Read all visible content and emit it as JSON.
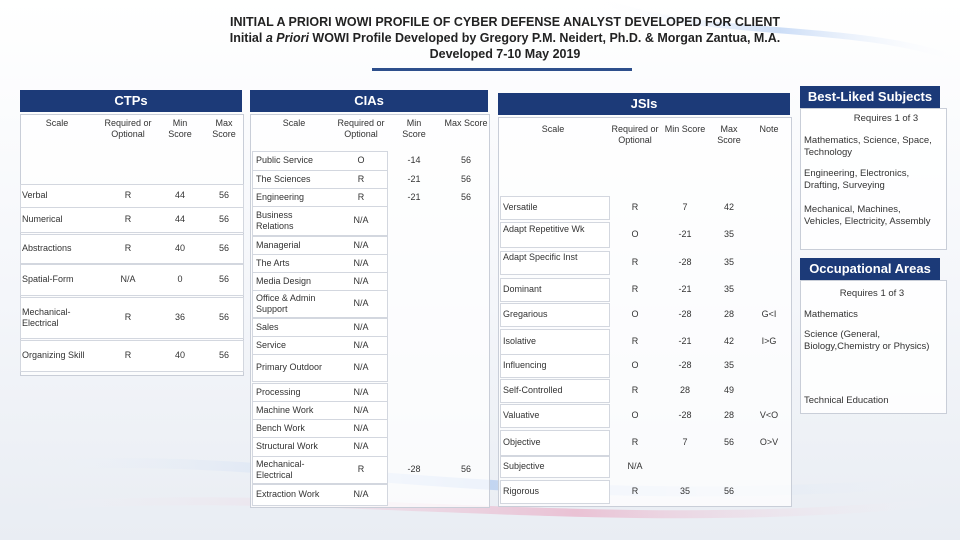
{
  "title": {
    "line1": "INITIAL A PRIORI WOWI PROFILE OF CYBER DEFENSE ANALYST DEVELOPED FOR CLIENT",
    "line2_pre": "Initial ",
    "line2_italic": "a Priori",
    "line2_post": " WOWI Profile Developed by Gregory P.M. Neidert, Ph.D. & Morgan Zantua, M.A.",
    "line3": "Developed 7-10 May 2019"
  },
  "ctps": {
    "header": "CTPs",
    "columns": [
      "Scale",
      "Required or Optional",
      "Min Score",
      "Max Score"
    ],
    "rows": [
      [
        "Verbal",
        "R",
        "44",
        "56"
      ],
      [
        "Numerical",
        "R",
        "44",
        "56"
      ],
      [
        "Abstractions",
        "R",
        "40",
        "56"
      ],
      [
        "Spatial-Form",
        "N/A",
        "0",
        "56"
      ],
      [
        "Mechanical-Electrical",
        "R",
        "36",
        "56"
      ],
      [
        "Organizing Skill",
        "R",
        "40",
        "56"
      ]
    ]
  },
  "cias": {
    "header": "CIAs",
    "columns": [
      "Scale",
      "Required or Optional",
      "Min Score",
      "Max Score"
    ],
    "rows": [
      [
        "Public Service",
        "O",
        "-14",
        "56"
      ],
      [
        "The Sciences",
        "R",
        "-21",
        "56"
      ],
      [
        "Engineering",
        "R",
        "-21",
        "56"
      ],
      [
        "Business Relations",
        "N/A",
        "",
        ""
      ],
      [
        "Managerial",
        "N/A",
        "",
        ""
      ],
      [
        "The Arts",
        "N/A",
        "",
        ""
      ],
      [
        "Media Design",
        "N/A",
        "",
        ""
      ],
      [
        "Office & Admin Support",
        "N/A",
        "",
        ""
      ],
      [
        "Sales",
        "N/A",
        "",
        ""
      ],
      [
        "Service",
        "N/A",
        "",
        ""
      ],
      [
        "Primary Outdoor",
        "N/A",
        "",
        ""
      ],
      [
        "Processing",
        "N/A",
        "",
        ""
      ],
      [
        "Machine Work",
        "N/A",
        "",
        ""
      ],
      [
        "Bench Work",
        "N/A",
        "",
        ""
      ],
      [
        "Structural Work",
        "N/A",
        "",
        ""
      ],
      [
        "Mechanical-Electrical",
        "R",
        "-28",
        "56"
      ],
      [
        "Extraction Work",
        "N/A",
        "",
        ""
      ]
    ]
  },
  "jsis": {
    "header": "JSIs",
    "columns": [
      "Scale",
      "Required or Optional",
      "Min Score",
      "Max Score",
      "Note"
    ],
    "rows": [
      [
        "Versatile",
        "R",
        "7",
        "42",
        ""
      ],
      [
        "Adapt Repetitive Wk",
        "O",
        "-21",
        "35",
        ""
      ],
      [
        "Adapt Specific Inst",
        "R",
        "-28",
        "35",
        ""
      ],
      [
        "Dominant",
        "R",
        "-21",
        "35",
        ""
      ],
      [
        "Gregarious",
        "O",
        "-28",
        "28",
        "G<I"
      ],
      [
        "Isolative",
        "R",
        "-21",
        "42",
        "I>G"
      ],
      [
        "Influencing",
        "O",
        "-28",
        "35",
        ""
      ],
      [
        "Self-Controlled",
        "R",
        "28",
        "49",
        ""
      ],
      [
        "Valuative",
        "O",
        "-28",
        "28",
        "V<O"
      ],
      [
        "Objective",
        "R",
        "7",
        "56",
        "O>V"
      ],
      [
        "Subjective",
        "N/A",
        "",
        "",
        ""
      ],
      [
        "Rigorous",
        "R",
        "35",
        "56",
        ""
      ]
    ]
  },
  "best_liked": {
    "header": "Best-Liked Subjects",
    "requires": "Requires 1 of 3",
    "items": [
      "Mathematics, Science, Space, Technology",
      "Engineering, Electronics, Drafting, Surveying",
      "Mechanical, Machines, Vehicles, Electricity, Assembly"
    ]
  },
  "occupational": {
    "header": "Occupational Areas",
    "requires": "Requires 1 of 3",
    "items": [
      "Mathematics",
      "Science (General, Biology,Chemistry or Physics)",
      "Technical Education"
    ]
  },
  "colors": {
    "header_bg": "#1c3a78",
    "rule": "#2e4f8c"
  }
}
